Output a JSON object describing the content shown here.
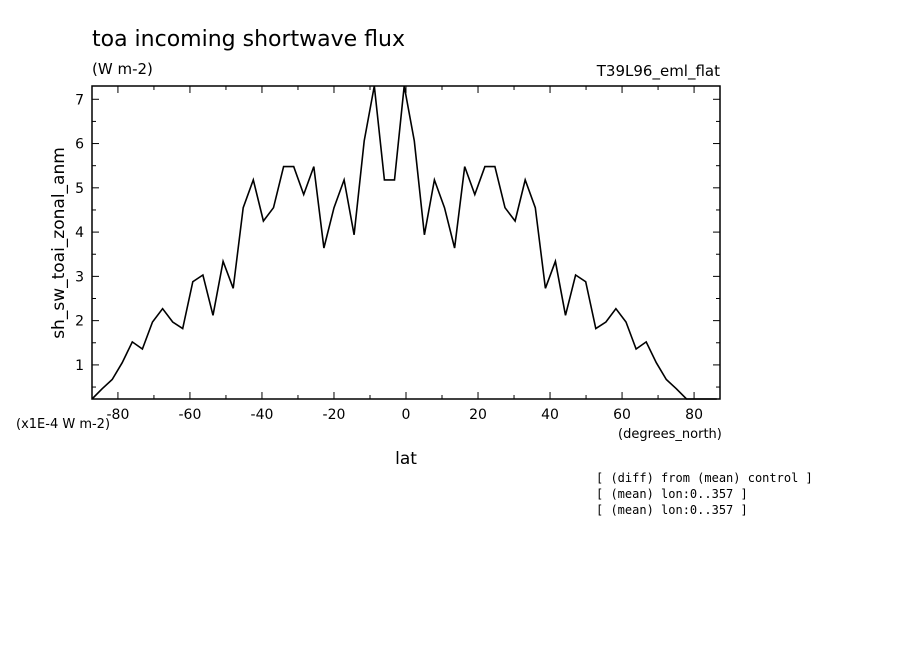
{
  "chart_data": {
    "type": "line",
    "title": "toa incoming shortwave flux",
    "units": "(W m-2)",
    "run_label": "T39L96_eml_flat",
    "xlabel": "lat",
    "xunits": "(degrees_north)",
    "ylabel": "sh_sw_toai_zonal_anm",
    "yscale_label": "(x1E-4 W m-2)",
    "xlim": [
      -87.2,
      87.2
    ],
    "ylim": [
      0.23,
      7.3
    ],
    "xticks": [
      -80,
      -60,
      -40,
      -20,
      0,
      20,
      40,
      60,
      80
    ],
    "xtick_labels": [
      "-80",
      "-60",
      "-40",
      "-20",
      "0",
      "20",
      "40",
      "60",
      "80"
    ],
    "yticks": [
      1,
      2,
      3,
      4,
      5,
      6,
      7
    ],
    "ytick_labels": [
      "1",
      "2",
      "3",
      "4",
      "5",
      "6",
      "7"
    ],
    "series": [
      {
        "x": [
          -87.2,
          -84.4,
          -81.6,
          -78.8,
          -76.0,
          -73.2,
          -70.4,
          -67.6,
          -64.8,
          -62.0,
          -59.2,
          -56.4,
          -53.6,
          -50.8,
          -48.0,
          -45.2,
          -42.4,
          -39.6,
          -36.8,
          -34.0,
          -31.2,
          -28.4,
          -25.6,
          -22.8,
          -20.0,
          -17.2,
          -14.4,
          -11.6,
          -8.8,
          -6.0,
          -3.2,
          -0.5,
          2.3,
          5.1,
          7.9,
          10.7,
          13.5,
          16.3,
          19.1,
          21.9,
          24.7,
          27.5,
          30.3,
          33.1,
          35.9,
          38.7,
          41.5,
          44.3,
          47.1,
          49.9,
          52.7,
          55.5,
          58.3,
          61.1,
          63.9,
          66.7,
          69.5,
          72.3,
          75.1,
          77.9,
          80.7,
          83.5,
          86.3
        ],
        "y": [
          0.23,
          0.46,
          0.67,
          1.05,
          1.52,
          1.36,
          1.97,
          2.27,
          1.97,
          1.82,
          2.88,
          3.03,
          2.12,
          3.34,
          2.73,
          4.55,
          5.18,
          4.25,
          4.55,
          5.48,
          5.48,
          4.85,
          5.48,
          3.64,
          4.55,
          5.18,
          3.94,
          6.06,
          7.3,
          5.18,
          5.18,
          7.3,
          6.06,
          3.94,
          5.18,
          4.55,
          3.64,
          5.48,
          4.85,
          5.48,
          5.48,
          4.55,
          4.25,
          5.18,
          4.55,
          2.73,
          3.34,
          2.12,
          3.03,
          2.88,
          1.82,
          1.97,
          2.27,
          1.97,
          1.36,
          1.52,
          1.05,
          0.67,
          0.46,
          0.23,
          0.23,
          0.23,
          0.23
        ]
      }
    ],
    "notes": [
      "[ (diff) from (mean) control ]",
      "[ (mean) lon:0..357 ]",
      "[ (mean) lon:0..357 ]"
    ],
    "grid": false,
    "legend": "none"
  }
}
